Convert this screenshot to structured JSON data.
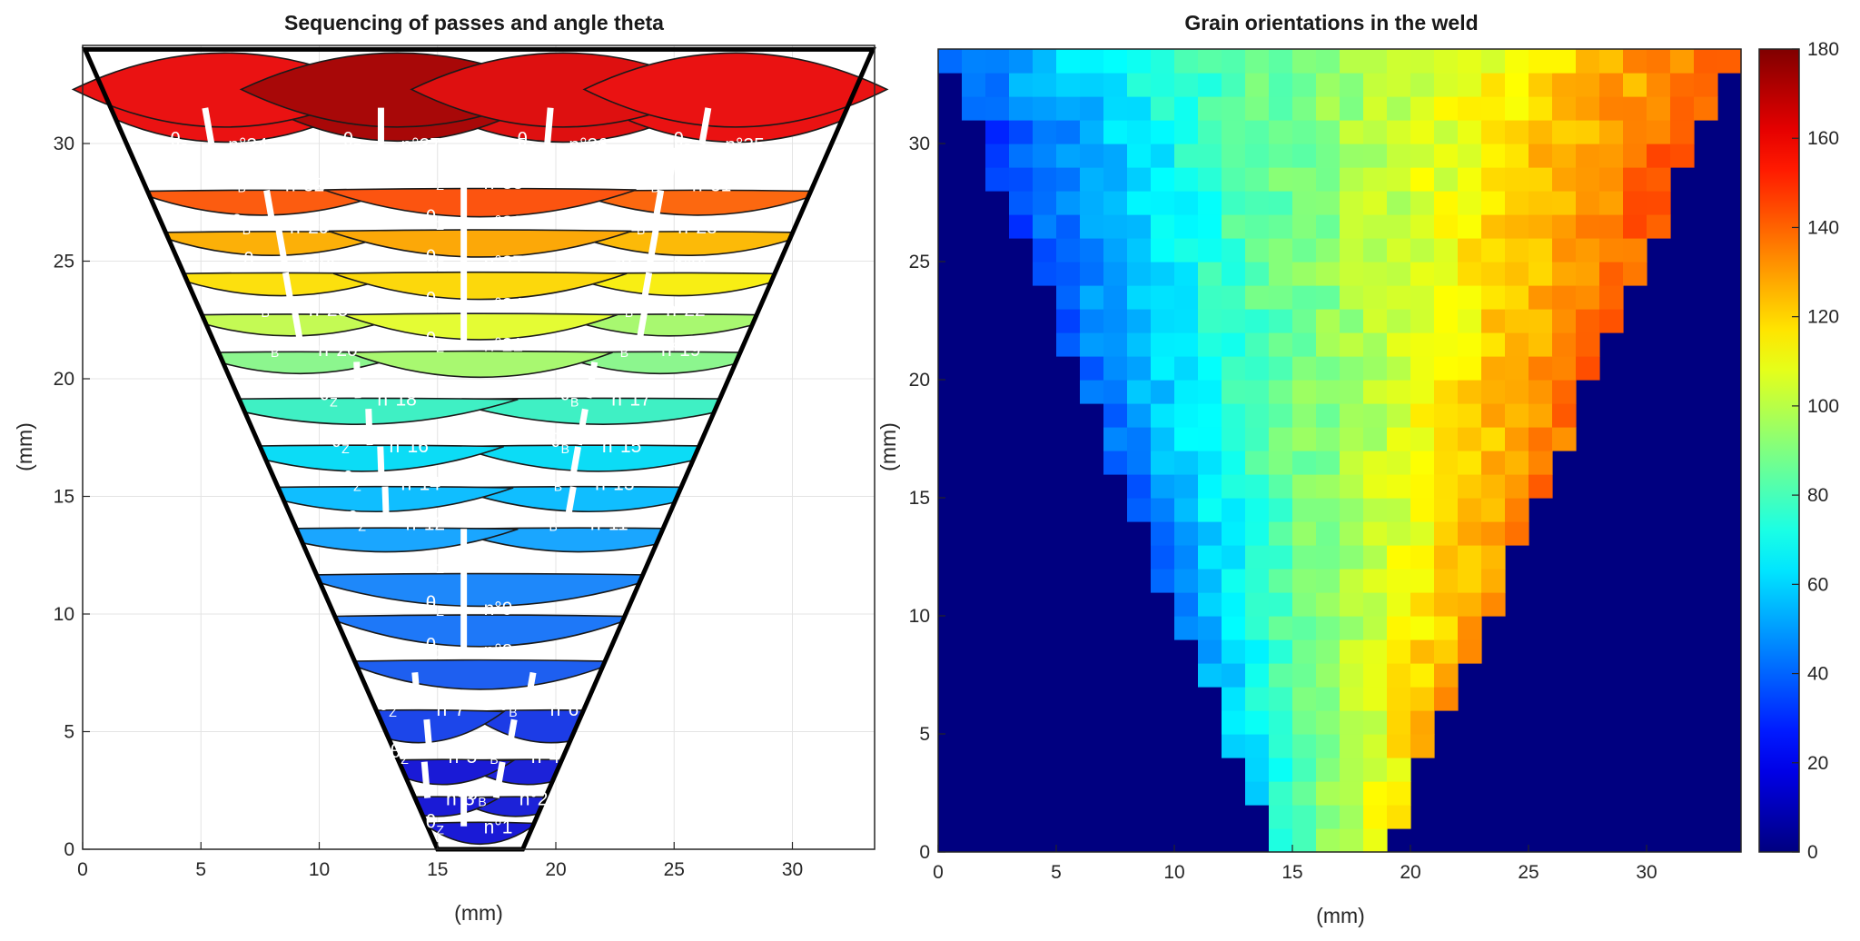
{
  "chart_data": [
    {
      "type": "area",
      "title": "Sequencing of passes and angle theta",
      "xlabel": "(mm)",
      "ylabel": "(mm)",
      "xlim": [
        0,
        33.5
      ],
      "ylim": [
        0,
        34
      ],
      "xticks": [
        0,
        5,
        10,
        15,
        20,
        25,
        30
      ],
      "yticks": [
        0,
        5,
        10,
        15,
        20,
        25,
        30
      ],
      "grid": true,
      "bead_colors": {
        "1": "#1a1ad6",
        "2": "#1c22d8",
        "3": "#1a1ad6",
        "4": "#1c22d8",
        "5": "#1a1ad6",
        "6": "#1c3ce6",
        "7": "#1c46ea",
        "8": "#1e5ff0",
        "9": "#1e78f8",
        "10": "#1e88fa",
        "11": "#1aa6ff",
        "12": "#1aa6ff",
        "13": "#10beff",
        "14": "#10beff",
        "15": "#0cdcf6",
        "16": "#0cdcf6",
        "17": "#3ff0c4",
        "18": "#3ff0c4",
        "19": "#8cf68e",
        "20": "#8cf68e",
        "21": "#a8f870",
        "22": "#a8f870",
        "23": "#c4fa54",
        "24": "#e4fc34",
        "25": "#f8ee14",
        "26": "#fce00e",
        "27": "#fcd80c",
        "28": "#fcba08",
        "29": "#fcb008",
        "30": "#fca808",
        "31": "#fc6810",
        "32": "#fc5c10",
        "33": "#fc5410",
        "34": "#ea1212",
        "35": "#ea1212",
        "36": "#de1010",
        "37": "#a80808"
      },
      "passes": [
        {
          "n": 1,
          "label": "n°1",
          "angle_label": "θ",
          "angle_sub": "Z",
          "x": 16.8,
          "y": 0.9,
          "orientation_deg": 90
        },
        {
          "n": 2,
          "label": "n°2",
          "angle_label": "-θ",
          "angle_sub": "B",
          "x": 18.3,
          "y": 2.1,
          "orientation_deg": 100
        },
        {
          "n": 3,
          "label": "n°3",
          "angle_label": "θ",
          "angle_sub": "Z",
          "x": 15.2,
          "y": 2.1,
          "orientation_deg": 85
        },
        {
          "n": 4,
          "label": "n°4",
          "angle_label": "-θ",
          "angle_sub": "B",
          "x": 18.8,
          "y": 3.9,
          "orientation_deg": 100
        },
        {
          "n": 5,
          "label": "n°5",
          "angle_label": "θ",
          "angle_sub": "Z",
          "x": 15.3,
          "y": 3.9,
          "orientation_deg": 85
        },
        {
          "n": 6,
          "label": "n°6",
          "angle_label": "-θ",
          "angle_sub": "B",
          "x": 19.6,
          "y": 5.9,
          "orientation_deg": 100
        },
        {
          "n": 7,
          "label": "n°7",
          "angle_label": "θ",
          "angle_sub": "Z",
          "x": 14.8,
          "y": 5.9,
          "orientation_deg": 85
        },
        {
          "n": 8,
          "label": "n°8",
          "angle_label": "θ",
          "angle_sub": "Z",
          "x": 16.8,
          "y": 8.4,
          "orientation_deg": 90
        },
        {
          "n": 9,
          "label": "n°9",
          "angle_label": "θ",
          "angle_sub": "Z",
          "x": 16.8,
          "y": 10.2,
          "orientation_deg": 90
        },
        {
          "n": 10,
          "label": "n°10",
          "angle_label": "θ",
          "angle_sub": "Z",
          "x": 16.8,
          "y": 12.0,
          "orientation_deg": 90
        },
        {
          "n": 11,
          "label": "n°11",
          "angle_label": "-θ",
          "angle_sub": "B",
          "x": 21.3,
          "y": 13.8,
          "orientation_deg": 100
        },
        {
          "n": 12,
          "label": "n°12",
          "angle_label": "θ",
          "angle_sub": "Z",
          "x": 13.5,
          "y": 13.8,
          "orientation_deg": 88
        },
        {
          "n": 13,
          "label": "n°13",
          "angle_label": "-θ",
          "angle_sub": "B",
          "x": 21.5,
          "y": 15.5,
          "orientation_deg": 100
        },
        {
          "n": 14,
          "label": "n°14",
          "angle_label": "θ",
          "angle_sub": "Z",
          "x": 13.3,
          "y": 15.5,
          "orientation_deg": 88
        },
        {
          "n": 15,
          "label": "n°15",
          "angle_label": "-θ",
          "angle_sub": "B",
          "x": 21.8,
          "y": 17.1,
          "orientation_deg": 100
        },
        {
          "n": 16,
          "label": "n°16",
          "angle_label": "θ",
          "angle_sub": "Z",
          "x": 12.8,
          "y": 17.1,
          "orientation_deg": 88
        },
        {
          "n": 17,
          "label": "n°17",
          "angle_label": "-θ",
          "angle_sub": "B",
          "x": 22.2,
          "y": 19.1,
          "orientation_deg": 100
        },
        {
          "n": 18,
          "label": "n°18",
          "angle_label": "θ",
          "angle_sub": "Z",
          "x": 12.3,
          "y": 19.1,
          "orientation_deg": 88
        },
        {
          "n": 19,
          "label": "n°19",
          "angle_label": "-θ",
          "angle_sub": "B",
          "x": 24.3,
          "y": 21.2,
          "orientation_deg": 100
        },
        {
          "n": 20,
          "label": "n°20",
          "angle_label": "θ",
          "angle_sub": "B",
          "x": 9.8,
          "y": 21.2,
          "orientation_deg": 80
        },
        {
          "n": 21,
          "label": "n°21",
          "angle_label": "θ",
          "angle_sub": "Z",
          "x": 16.8,
          "y": 21.4,
          "orientation_deg": 90
        },
        {
          "n": 22,
          "label": "n°22",
          "angle_label": "-θ",
          "angle_sub": "B",
          "x": 24.5,
          "y": 22.9,
          "orientation_deg": 100
        },
        {
          "n": 23,
          "label": "n°23",
          "angle_label": "θ",
          "angle_sub": "B",
          "x": 9.4,
          "y": 22.9,
          "orientation_deg": 80
        },
        {
          "n": 24,
          "label": "n°24",
          "angle_label": "θ",
          "angle_sub": "Z",
          "x": 16.8,
          "y": 23.1,
          "orientation_deg": 90
        },
        {
          "n": 25,
          "label": "n°25",
          "angle_label": "-θ",
          "angle_sub": "B",
          "x": 24.8,
          "y": 24.8,
          "orientation_deg": 100
        },
        {
          "n": 26,
          "label": "n°26",
          "angle_label": "θ",
          "angle_sub": "B",
          "x": 9.1,
          "y": 24.8,
          "orientation_deg": 80
        },
        {
          "n": 27,
          "label": "n°27",
          "angle_label": "θ",
          "angle_sub": "Z",
          "x": 16.8,
          "y": 24.9,
          "orientation_deg": 90
        },
        {
          "n": 28,
          "label": "n°28",
          "angle_label": "-θ",
          "angle_sub": "B",
          "x": 25.0,
          "y": 26.4,
          "orientation_deg": 100
        },
        {
          "n": 29,
          "label": "n°29",
          "angle_label": "θ",
          "angle_sub": "B",
          "x": 8.6,
          "y": 26.4,
          "orientation_deg": 80
        },
        {
          "n": 30,
          "label": "n°30",
          "angle_label": "θ",
          "angle_sub": "Z",
          "x": 16.8,
          "y": 26.6,
          "orientation_deg": 90
        },
        {
          "n": 31,
          "label": "n°31",
          "angle_label": "-θ",
          "angle_sub": "B",
          "x": 25.6,
          "y": 28.2,
          "orientation_deg": 100
        },
        {
          "n": 32,
          "label": "n°32",
          "angle_label": "θ",
          "angle_sub": "B",
          "x": 8.4,
          "y": 28.2,
          "orientation_deg": 80
        },
        {
          "n": 33,
          "label": "n°33",
          "angle_label": "θ",
          "angle_sub": "Z",
          "x": 16.8,
          "y": 28.3,
          "orientation_deg": 90
        },
        {
          "n": 34,
          "label": "n°34",
          "angle_label": "θ",
          "angle_sub": "B",
          "x": 6.0,
          "y": 29.9,
          "orientation_deg": 80
        },
        {
          "n": 35,
          "label": "n°35",
          "angle_label": "-θ",
          "angle_sub": "B",
          "x": 27.0,
          "y": 29.9,
          "orientation_deg": 100
        },
        {
          "n": 36,
          "label": "n°36",
          "angle_label": "-θ",
          "angle_sub": "C",
          "x": 20.4,
          "y": 29.9,
          "orientation_deg": 95
        },
        {
          "n": 37,
          "label": "n°37",
          "angle_label": "θ",
          "angle_sub": "Z",
          "x": 13.3,
          "y": 29.9,
          "orientation_deg": 90
        }
      ]
    },
    {
      "type": "heatmap",
      "title": "Grain orientations in the weld",
      "xlabel": "(mm)",
      "ylabel": "(mm)",
      "xlim": [
        0,
        34
      ],
      "ylim": [
        0,
        34
      ],
      "xticks": [
        0,
        5,
        10,
        15,
        20,
        25,
        30
      ],
      "yticks": [
        0,
        5,
        10,
        15,
        20,
        25,
        30
      ],
      "grid": false,
      "cell_size_mm": 1,
      "background_value": 0,
      "colorbar": {
        "min": 0,
        "max": 180,
        "ticks": [
          0,
          20,
          40,
          60,
          80,
          100,
          120,
          140,
          160,
          180
        ],
        "colormap": "jet"
      },
      "orientation_model": {
        "center_x_mm": 16.8,
        "rows": [
          {
            "y": 0,
            "left_deg": 62,
            "right_deg": 110
          },
          {
            "y": 5,
            "left_deg": 55,
            "right_deg": 128
          },
          {
            "y": 10,
            "left_deg": 40,
            "right_deg": 135
          },
          {
            "y": 15,
            "left_deg": 38,
            "right_deg": 138
          },
          {
            "y": 20,
            "left_deg": 38,
            "right_deg": 140
          },
          {
            "y": 25,
            "left_deg": 35,
            "right_deg": 142
          },
          {
            "y": 30,
            "left_deg": 28,
            "right_deg": 145
          },
          {
            "y": 33,
            "left_deg": 40,
            "right_deg": 140
          }
        ]
      }
    }
  ]
}
